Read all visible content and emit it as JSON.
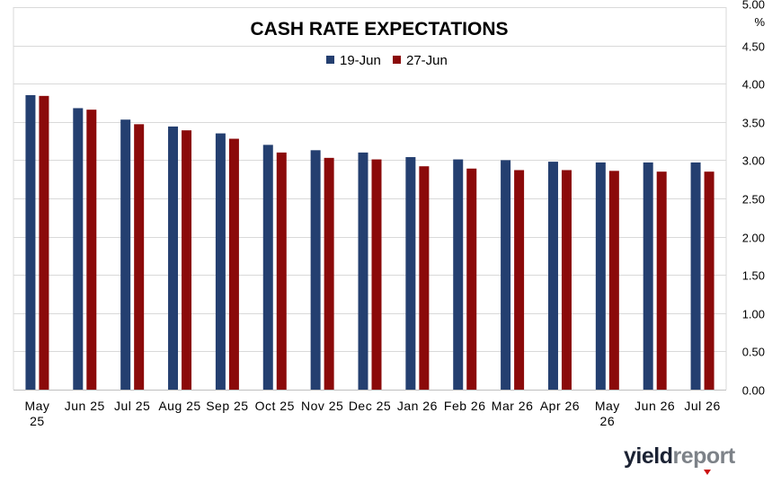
{
  "chart_data": {
    "type": "bar",
    "title": "CASH RATE EXPECTATIONS",
    "ylabel": "%",
    "ylim": [
      0,
      5
    ],
    "yticks": [
      "0.00",
      "0.50",
      "1.00",
      "1.50",
      "2.00",
      "2.50",
      "3.00",
      "3.50",
      "4.00",
      "4.50",
      "5.00"
    ],
    "grid": true,
    "legend_position": "top-center",
    "y_axis_side": "right",
    "categories": [
      [
        "May",
        "25"
      ],
      [
        "Jun 25"
      ],
      [
        "Jul 25"
      ],
      [
        "Aug 25"
      ],
      [
        "Sep 25"
      ],
      [
        "Oct 25"
      ],
      [
        "Nov 25"
      ],
      [
        "Dec 25"
      ],
      [
        "Jan 26"
      ],
      [
        "Feb 26"
      ],
      [
        "Mar 26"
      ],
      [
        "Apr 26"
      ],
      [
        "May",
        "26"
      ],
      [
        "Jun 26"
      ],
      [
        "Jul 26"
      ]
    ],
    "series": [
      {
        "name": "19-Jun",
        "color": "#243f70",
        "values": [
          3.85,
          3.68,
          3.53,
          3.44,
          3.35,
          3.2,
          3.13,
          3.1,
          3.04,
          3.01,
          3.0,
          2.98,
          2.97,
          2.97,
          2.97
        ]
      },
      {
        "name": "27-Jun",
        "color": "#8b0a0a",
        "values": [
          3.84,
          3.66,
          3.47,
          3.39,
          3.28,
          3.1,
          3.03,
          3.01,
          2.92,
          2.89,
          2.87,
          2.87,
          2.86,
          2.85,
          2.85
        ]
      }
    ]
  },
  "logo": {
    "part1": "yield",
    "part2": "report",
    "accent_color": "#cc1111"
  }
}
